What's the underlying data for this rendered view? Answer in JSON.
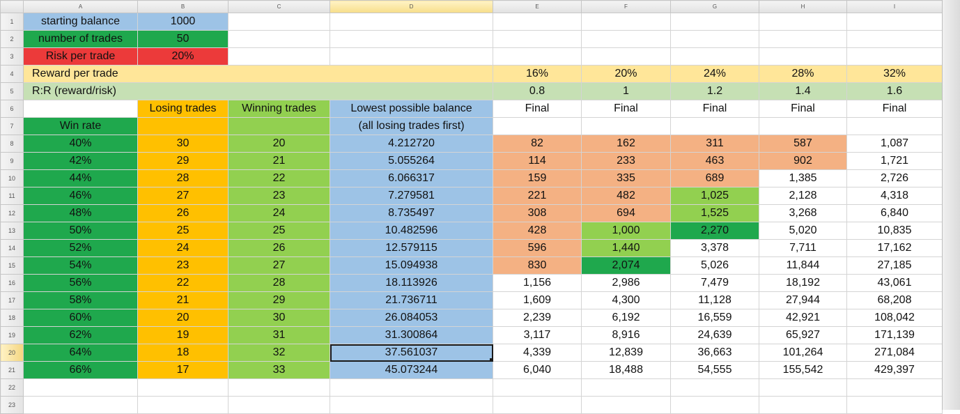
{
  "columns": [
    "A",
    "B",
    "C",
    "D",
    "E",
    "F",
    "G",
    "H",
    "I"
  ],
  "row_numbers": [
    "1",
    "2",
    "3",
    "4",
    "5",
    "6",
    "7",
    "8",
    "9",
    "10",
    "11",
    "12",
    "13",
    "14",
    "15",
    "16",
    "17",
    "18",
    "19",
    "20",
    "21",
    "22",
    "23"
  ],
  "inputs": {
    "starting_balance_label": "starting balance",
    "starting_balance": "1000",
    "number_of_trades_label": "number of trades",
    "number_of_trades": "50",
    "risk_per_trade_label": "Risk per trade",
    "risk_per_trade": "20%"
  },
  "reward_row": {
    "label": "Reward per trade",
    "values": [
      "16%",
      "20%",
      "24%",
      "28%",
      "32%"
    ]
  },
  "rr_row": {
    "label": "R:R (reward/risk)",
    "values": [
      "0.8",
      "1",
      "1.2",
      "1.4",
      "1.6"
    ]
  },
  "headers": {
    "losing": "Losing trades",
    "winning": "Winning trades",
    "lowest_1": "Lowest possible balance",
    "lowest_2": "(all losing trades first)",
    "final": "Final",
    "win_rate": "Win rate"
  },
  "rows": [
    {
      "win": "40%",
      "lose": "30",
      "winn": "20",
      "low": "4.212720",
      "f": [
        "82",
        "162",
        "311",
        "587",
        "1,087"
      ],
      "fill": [
        "p",
        "p",
        "p",
        "p",
        ""
      ]
    },
    {
      "win": "42%",
      "lose": "29",
      "winn": "21",
      "low": "5.055264",
      "f": [
        "114",
        "233",
        "463",
        "902",
        "1,721"
      ],
      "fill": [
        "p",
        "p",
        "p",
        "p",
        ""
      ]
    },
    {
      "win": "44%",
      "lose": "28",
      "winn": "22",
      "low": "6.066317",
      "f": [
        "159",
        "335",
        "689",
        "1,385",
        "2,726"
      ],
      "fill": [
        "p",
        "p",
        "p",
        "",
        ""
      ]
    },
    {
      "win": "46%",
      "lose": "27",
      "winn": "23",
      "low": "7.279581",
      "f": [
        "221",
        "482",
        "1,025",
        "2,128",
        "4,318"
      ],
      "fill": [
        "p",
        "p",
        "g",
        "",
        ""
      ]
    },
    {
      "win": "48%",
      "lose": "26",
      "winn": "24",
      "low": "8.735497",
      "f": [
        "308",
        "694",
        "1,525",
        "3,268",
        "6,840"
      ],
      "fill": [
        "p",
        "p",
        "g",
        "",
        ""
      ]
    },
    {
      "win": "50%",
      "lose": "25",
      "winn": "25",
      "low": "10.482596",
      "f": [
        "428",
        "1,000",
        "2,270",
        "5,020",
        "10,835"
      ],
      "fill": [
        "p",
        "g",
        "dg",
        "",
        ""
      ]
    },
    {
      "win": "52%",
      "lose": "24",
      "winn": "26",
      "low": "12.579115",
      "f": [
        "596",
        "1,440",
        "3,378",
        "7,711",
        "17,162"
      ],
      "fill": [
        "p",
        "g",
        "",
        "",
        ""
      ]
    },
    {
      "win": "54%",
      "lose": "23",
      "winn": "27",
      "low": "15.094938",
      "f": [
        "830",
        "2,074",
        "5,026",
        "11,844",
        "27,185"
      ],
      "fill": [
        "p",
        "dg",
        "",
        "",
        ""
      ]
    },
    {
      "win": "56%",
      "lose": "22",
      "winn": "28",
      "low": "18.113926",
      "f": [
        "1,156",
        "2,986",
        "7,479",
        "18,192",
        "43,061"
      ],
      "fill": [
        "",
        "",
        "",
        "",
        ""
      ]
    },
    {
      "win": "58%",
      "lose": "21",
      "winn": "29",
      "low": "21.736711",
      "f": [
        "1,609",
        "4,300",
        "11,128",
        "27,944",
        "68,208"
      ],
      "fill": [
        "",
        "",
        "",
        "",
        ""
      ]
    },
    {
      "win": "60%",
      "lose": "20",
      "winn": "30",
      "low": "26.084053",
      "f": [
        "2,239",
        "6,192",
        "16,559",
        "42,921",
        "108,042"
      ],
      "fill": [
        "",
        "",
        "",
        "",
        ""
      ]
    },
    {
      "win": "62%",
      "lose": "19",
      "winn": "31",
      "low": "31.300864",
      "f": [
        "3,117",
        "8,916",
        "24,639",
        "65,927",
        "171,139"
      ],
      "fill": [
        "",
        "",
        "",
        "",
        ""
      ]
    },
    {
      "win": "64%",
      "lose": "18",
      "winn": "32",
      "low": "37.561037",
      "f": [
        "4,339",
        "12,839",
        "36,663",
        "101,264",
        "271,084"
      ],
      "fill": [
        "",
        "",
        "",
        "",
        ""
      ]
    },
    {
      "win": "66%",
      "lose": "17",
      "winn": "33",
      "low": "45.073244",
      "f": [
        "6,040",
        "18,488",
        "54,555",
        "155,542",
        "429,397"
      ],
      "fill": [
        "",
        "",
        "",
        "",
        ""
      ]
    }
  ],
  "colors": {
    "blue": "#9dc3e6",
    "dark_green": "#1fa84d",
    "red": "#ec3a3a",
    "yellow": "#ffe699",
    "light_green": "#c6e0b4",
    "orange": "#ffc000",
    "green": "#92d050",
    "peach": "#f4b183"
  },
  "selected_cell": "D20"
}
